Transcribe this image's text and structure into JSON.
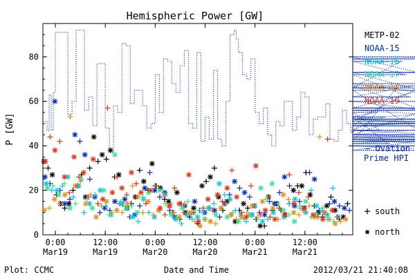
{
  "chart_data": {
    "type": "scatter",
    "title": "Hemispheric Power [GW]",
    "ylabel": "P [GW]",
    "xlabel": "Date and Time",
    "ylim": [
      0,
      95
    ],
    "x_range": [
      "2012-03-18 21:00",
      "2012-03-21 23:30"
    ],
    "y_ticks": [
      0,
      20,
      40,
      60,
      80
    ],
    "x_ticks": [
      {
        "time": "2012-03-19 00:00",
        "label1": "0:00",
        "label2": "Mar19"
      },
      {
        "time": "2012-03-19 12:00",
        "label1": "12:00",
        "label2": "Mar19"
      },
      {
        "time": "2012-03-20 00:00",
        "label1": "0:00",
        "label2": "Mar20"
      },
      {
        "time": "2012-03-20 12:00",
        "label1": "12:00",
        "label2": "Mar20"
      },
      {
        "time": "2012-03-21 00:00",
        "label1": "0:00",
        "label2": "Mar21"
      },
      {
        "time": "2012-03-21 12:00",
        "label1": "12:00",
        "label2": "Mar21"
      }
    ],
    "grid": false,
    "legend_position": "right",
    "satellites": [
      {
        "name": "METP-02",
        "color": "#000000"
      },
      {
        "name": "NOAA-15",
        "color": "#0028c8"
      },
      {
        "name": "NOAA-16",
        "color": "#00c8e6"
      },
      {
        "name": "NOAA-17",
        "color": "#32e68c"
      },
      {
        "name": "NOAA-18",
        "color": "#f08c14"
      },
      {
        "name": "NOAA-19",
        "color": "#e63214"
      }
    ],
    "ovation": {
      "label1": "– Ovation",
      "label2": "Prime HPI",
      "color": "#0028c8",
      "step_hours": 0.5,
      "values": [
        51,
        51,
        47,
        63,
        47,
        64,
        91,
        91,
        91,
        91,
        91,
        91,
        54,
        54,
        60,
        60,
        92,
        92,
        92,
        92,
        56,
        56,
        62,
        62,
        49,
        49,
        77,
        77,
        77,
        77,
        48,
        48,
        37,
        37,
        58,
        58,
        55,
        55,
        86,
        86,
        85,
        85,
        59,
        59,
        65,
        65,
        65,
        65,
        58,
        58,
        48,
        48,
        50,
        50,
        72,
        72,
        55,
        55,
        79,
        79,
        78,
        78,
        68,
        68,
        64,
        64,
        76,
        76,
        83,
        83,
        50,
        50,
        48,
        48,
        82,
        82,
        42,
        42,
        53,
        53,
        43,
        43,
        74,
        74,
        43,
        43,
        40,
        40,
        60,
        60,
        90,
        90,
        92,
        88,
        82,
        82,
        72,
        72,
        70,
        70,
        79,
        79,
        55,
        55,
        50,
        50,
        57,
        57,
        45,
        45,
        40,
        40,
        51,
        51,
        49,
        49,
        60,
        60,
        60,
        60,
        47,
        47,
        53,
        53,
        64,
        64,
        62,
        62,
        45,
        45,
        52,
        52,
        53,
        53,
        53,
        53,
        59,
        59,
        43,
        43,
        42,
        42,
        47,
        47,
        56,
        56,
        50,
        50,
        46,
        46,
        47,
        47,
        49,
        49,
        52,
        52,
        52,
        52,
        53,
        53,
        55,
        55,
        47,
        47,
        53,
        53,
        41,
        41,
        42,
        42,
        66,
        66,
        78,
        78,
        72,
        72,
        62,
        62,
        67,
        67,
        57,
        57,
        65,
        65,
        45,
        45,
        44,
        44,
        44,
        44,
        42,
        42,
        42,
        42,
        43,
        43,
        40,
        40,
        40,
        40,
        38,
        38,
        45,
        45,
        49,
        49,
        51,
        51,
        79,
        79,
        80,
        80,
        66,
        66,
        68,
        68,
        60,
        60,
        52,
        52,
        49,
        49,
        52,
        52,
        57,
        57,
        56,
        56,
        52,
        52,
        47,
        47,
        43,
        43,
        42,
        42,
        45,
        45,
        73,
        73,
        73,
        73,
        50,
        50,
        50,
        50
      ]
    },
    "series": [
      {
        "satellite": "METP-02",
        "start_hour": 0.25,
        "step_hours": 1.0,
        "values": [
          33,
          30,
          27,
          18,
          14,
          12,
          14,
          20,
          22,
          27,
          17,
          30,
          44,
          33,
          36,
          34,
          38,
          26,
          27,
          14,
          12,
          14,
          17,
          29,
          24,
          20,
          32,
          22,
          21,
          16,
          15,
          10,
          19,
          14,
          10,
          8,
          12,
          5,
          22,
          24,
          26,
          30,
          17,
          11,
          15,
          9,
          6,
          11,
          14,
          12,
          9,
          7,
          4,
          4,
          17,
          11,
          14,
          11,
          9,
          14,
          20,
          22,
          22,
          28,
          18,
          13,
          10,
          8,
          13,
          17,
          11,
          7,
          8,
          14,
          15,
          9,
          8,
          5,
          9,
          12
        ]
      },
      {
        "satellite": "NOAA-15",
        "start_hour": 0.5,
        "step_hours": 1.2,
        "values": [
          26,
          23,
          60,
          20,
          14,
          16,
          45,
          42,
          36,
          25,
          17,
          10,
          12,
          11,
          15,
          14,
          16,
          8,
          9,
          13,
          21,
          28,
          20,
          17,
          19,
          11,
          8,
          7,
          13,
          9,
          15,
          11,
          10,
          12,
          11,
          8,
          14,
          18,
          24,
          21,
          19,
          17,
          13,
          10,
          9,
          15,
          14,
          19,
          26,
          22,
          13,
          15,
          12,
          28,
          25,
          11,
          10,
          14,
          15,
          13,
          12,
          11,
          9,
          8,
          10
        ]
      },
      {
        "satellite": "NOAA-16",
        "start_hour": 0.8,
        "step_hours": 1.3,
        "values": [
          23,
          20,
          20,
          22,
          26,
          17,
          22,
          10,
          14,
          18,
          20,
          13,
          9,
          11,
          14,
          12,
          8,
          6,
          16,
          10,
          8,
          11,
          18,
          14,
          7,
          5,
          9,
          7,
          8,
          10,
          12,
          14,
          23,
          18,
          16,
          11,
          9,
          6,
          9,
          7,
          6,
          7,
          10,
          12,
          8,
          14,
          16,
          12,
          10,
          20,
          13,
          11,
          9,
          21,
          8
        ]
      },
      {
        "satellite": "NOAA-17",
        "start_hour": 1.1,
        "step_hours": 1.35,
        "values": [
          21,
          22,
          18,
          23,
          12,
          14,
          25,
          16,
          12,
          14,
          20,
          9,
          36,
          15,
          12,
          13,
          10,
          17,
          19,
          22,
          20,
          14,
          9,
          8,
          12,
          15,
          10,
          11,
          7,
          6,
          9,
          12,
          8,
          10,
          6,
          7,
          9,
          13,
          21,
          16,
          23,
          14,
          11,
          9,
          6,
          13,
          15,
          8,
          9,
          12,
          7,
          6
        ]
      },
      {
        "satellite": "NOAA-18",
        "start_hour": 0.3,
        "step_hours": 1.25,
        "values": [
          11,
          12,
          16,
          14,
          18,
          53,
          22,
          24,
          14,
          18,
          8,
          13,
          15,
          10,
          11,
          10,
          14,
          22,
          17,
          10,
          15,
          9,
          11,
          18,
          13,
          10,
          8,
          14,
          10,
          6,
          4,
          7,
          6,
          5,
          12,
          14,
          9,
          7,
          8,
          10,
          13,
          8,
          15,
          17,
          12,
          7,
          18,
          16,
          10,
          9,
          11,
          13,
          8,
          44,
          10,
          7,
          5,
          6,
          7
        ]
      },
      {
        "satellite": "NOAA-19",
        "start_hour": 0.6,
        "step_hours": 1.15,
        "values": [
          33,
          44,
          38,
          42,
          26,
          19,
          35,
          26,
          28,
          17,
          34,
          14,
          16,
          57,
          19,
          26,
          21,
          18,
          28,
          23,
          19,
          14,
          20,
          22,
          12,
          9,
          13,
          21,
          14,
          10,
          27,
          10,
          6,
          12,
          16,
          11,
          18,
          15,
          21,
          29,
          17,
          10,
          8,
          22,
          31,
          9,
          11,
          8,
          7,
          12,
          9,
          27,
          14,
          19,
          12,
          17,
          9,
          8,
          7,
          43,
          11,
          8
        ]
      }
    ],
    "marker_key": [
      {
        "symbol": "+",
        "label": "south"
      },
      {
        "symbol": "*",
        "label": "north"
      }
    ]
  },
  "footer": {
    "left": "Plot: CCMC",
    "right": "2012/03/21 21:40:08"
  }
}
